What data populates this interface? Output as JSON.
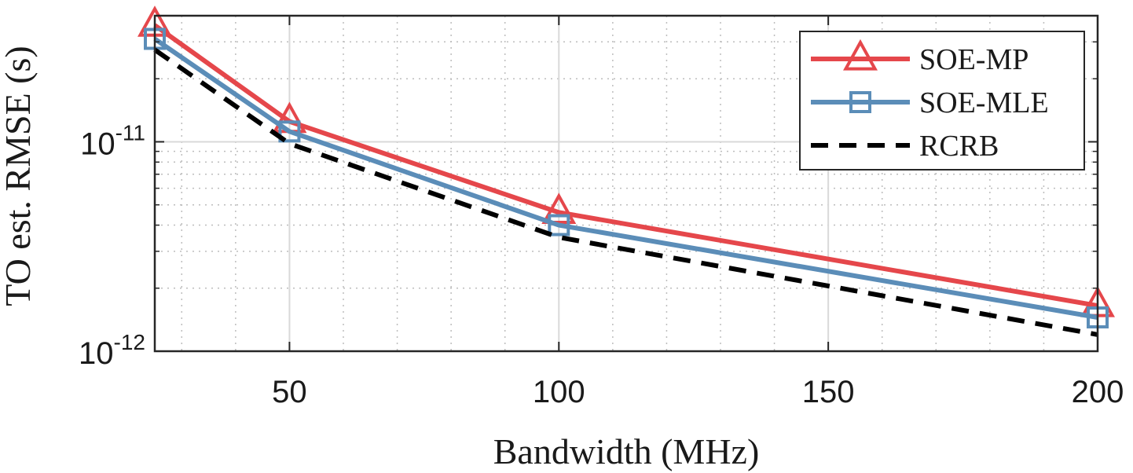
{
  "chart_data": {
    "type": "line",
    "xlabel": "Bandwidth (MHz)",
    "ylabel": "TO est. RMSE (s)",
    "xlim": [
      25,
      200
    ],
    "ylim": [
      1e-12,
      4e-11
    ],
    "yscale": "log",
    "grid": true,
    "legend_position": "top-right",
    "x_ticks": [
      50,
      100,
      150,
      200
    ],
    "x_tick_labels": [
      "50",
      "100",
      "150",
      "200"
    ],
    "y_ticks": [
      1e-12,
      1e-11
    ],
    "y_tick_labels": [
      {
        "base": "10",
        "exp": "-12"
      },
      {
        "base": "10",
        "exp": "-11"
      }
    ],
    "series": [
      {
        "name": "SOE-MP",
        "color": "#e5474b",
        "marker": "triangle",
        "dash": "solid",
        "x": [
          25,
          50,
          100,
          200
        ],
        "y": [
          3.6e-11,
          1.25e-11,
          4.6e-12,
          1.65e-12
        ]
      },
      {
        "name": "SOE-MLE",
        "color": "#5b8db8",
        "marker": "square",
        "dash": "solid",
        "x": [
          25,
          50,
          100,
          200
        ],
        "y": [
          3.1e-11,
          1.12e-11,
          4e-12,
          1.45e-12
        ]
      },
      {
        "name": "RCRB",
        "color": "#000000",
        "marker": "none",
        "dash": "dashed",
        "x": [
          25,
          50,
          100,
          200
        ],
        "y": [
          2.75e-11,
          9.8e-12,
          3.5e-12,
          1.2e-12
        ]
      }
    ]
  }
}
